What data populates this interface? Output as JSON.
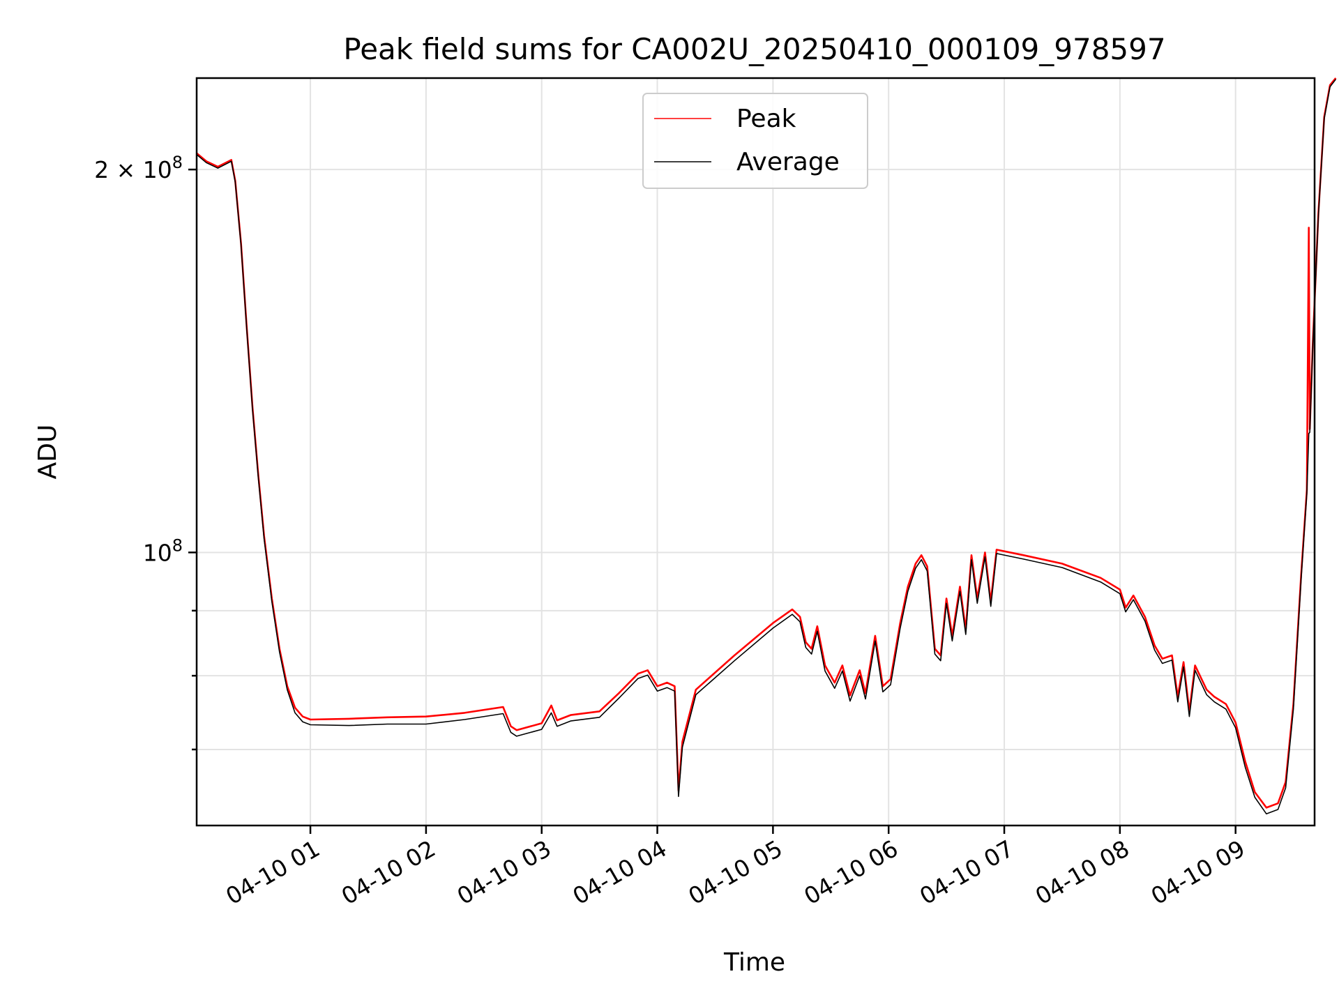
{
  "chart_data": {
    "type": "line",
    "title": "Peak field sums for CA002U_20250410_000109_978597",
    "xlabel": "Time",
    "ylabel": "ADU",
    "yscale": "log",
    "grid": true,
    "legend_position": "top-center",
    "xlim": [
      "04-10 00:01",
      "04-10 09:41"
    ],
    "ylim": [
      61000000,
      236000000
    ],
    "x_ticks": [
      "04-10 01",
      "04-10 02",
      "04-10 03",
      "04-10 04",
      "04-10 05",
      "04-10 06",
      "04-10 07",
      "04-10 08",
      "04-10 09"
    ],
    "y_ticks": [
      {
        "value": 100000000,
        "base": "10",
        "exp": "8",
        "mult": ""
      },
      {
        "value": 200000000,
        "base": "10",
        "exp": "8",
        "mult": "2 × "
      }
    ],
    "y_minor_ticks": [
      60000000,
      70000000,
      80000000,
      90000000
    ],
    "series": [
      {
        "name": "Peak",
        "color": "#ff0000",
        "points": [
          [
            "00:01",
            206000000
          ],
          [
            "00:06",
            203000000
          ],
          [
            "00:12",
            201000000
          ],
          [
            "00:19",
            203500000
          ],
          [
            "00:21",
            196000000
          ],
          [
            "00:24",
            175000000
          ],
          [
            "00:27",
            150000000
          ],
          [
            "00:30",
            130000000
          ],
          [
            "00:33",
            115000000
          ],
          [
            "00:36",
            103000000
          ],
          [
            "00:40",
            92000000
          ],
          [
            "00:44",
            84000000
          ],
          [
            "00:48",
            78500000
          ],
          [
            "00:52",
            75500000
          ],
          [
            "00:56",
            74300000
          ],
          [
            "01:00",
            73900000
          ],
          [
            "01:20",
            74000000
          ],
          [
            "01:40",
            74200000
          ],
          [
            "02:00",
            74300000
          ],
          [
            "02:20",
            74800000
          ],
          [
            "02:40",
            75600000
          ],
          [
            "02:44",
            73000000
          ],
          [
            "02:47",
            72500000
          ],
          [
            "03:00",
            73400000
          ],
          [
            "03:05",
            75800000
          ],
          [
            "03:08",
            73800000
          ],
          [
            "03:15",
            74500000
          ],
          [
            "03:30",
            75000000
          ],
          [
            "03:40",
            77500000
          ],
          [
            "03:50",
            80300000
          ],
          [
            "03:55",
            80800000
          ],
          [
            "04:00",
            78500000
          ],
          [
            "04:05",
            79000000
          ],
          [
            "04:09",
            78500000
          ],
          [
            "04:11",
            65000000
          ],
          [
            "04:13",
            71000000
          ],
          [
            "04:20",
            78000000
          ],
          [
            "04:40",
            83000000
          ],
          [
            "05:00",
            88000000
          ],
          [
            "05:10",
            90200000
          ],
          [
            "05:14",
            89000000
          ],
          [
            "05:17",
            85000000
          ],
          [
            "05:20",
            84000000
          ],
          [
            "05:23",
            87500000
          ],
          [
            "05:27",
            81500000
          ],
          [
            "05:32",
            79000000
          ],
          [
            "05:36",
            81500000
          ],
          [
            "05:40",
            77200000
          ],
          [
            "05:45",
            80800000
          ],
          [
            "05:48",
            77500000
          ],
          [
            "05:53",
            86000000
          ],
          [
            "05:57",
            78500000
          ],
          [
            "06:01",
            79500000
          ],
          [
            "06:06",
            88000000
          ],
          [
            "06:10",
            94000000
          ],
          [
            "06:14",
            98000000
          ],
          [
            "06:17",
            99500000
          ],
          [
            "06:20",
            97500000
          ],
          [
            "06:24",
            84000000
          ],
          [
            "06:27",
            83000000
          ],
          [
            "06:30",
            92000000
          ],
          [
            "06:33",
            86000000
          ],
          [
            "06:37",
            94000000
          ],
          [
            "06:40",
            87000000
          ],
          [
            "06:43",
            99500000
          ],
          [
            "06:46",
            92000000
          ],
          [
            "06:50",
            100000000
          ],
          [
            "06:53",
            91500000
          ],
          [
            "06:56",
            100500000
          ],
          [
            "07:10",
            99500000
          ],
          [
            "07:30",
            98000000
          ],
          [
            "07:50",
            95500000
          ],
          [
            "08:00",
            93500000
          ],
          [
            "08:03",
            90500000
          ],
          [
            "08:07",
            92500000
          ],
          [
            "08:13",
            89000000
          ],
          [
            "08:18",
            84500000
          ],
          [
            "08:22",
            82500000
          ],
          [
            "08:27",
            83000000
          ],
          [
            "08:30",
            77000000
          ],
          [
            "08:33",
            82000000
          ],
          [
            "08:36",
            75000000
          ],
          [
            "08:39",
            81500000
          ],
          [
            "08:45",
            78000000
          ],
          [
            "08:49",
            77000000
          ],
          [
            "08:55",
            76000000
          ],
          [
            "09:00",
            73500000
          ],
          [
            "09:05",
            68500000
          ],
          [
            "09:10",
            64800000
          ],
          [
            "09:16",
            63000000
          ],
          [
            "09:22",
            63500000
          ],
          [
            "09:26",
            66000000
          ],
          [
            "09:30",
            76000000
          ],
          [
            "09:34",
            96000000
          ],
          [
            "09:37",
            112000000
          ],
          [
            "09:38",
            180000000
          ],
          [
            "09:385",
            125000000
          ],
          [
            "09:40",
            145000000
          ],
          [
            "09:43",
            185000000
          ],
          [
            "09:46",
            220000000
          ],
          [
            "09:49",
            233000000
          ],
          [
            "09:52",
            236000000
          ]
        ]
      },
      {
        "name": "Average",
        "color": "#000000",
        "points": [
          [
            "00:01",
            205500000
          ],
          [
            "00:06",
            202500000
          ],
          [
            "00:12",
            200500000
          ],
          [
            "00:19",
            203000000
          ],
          [
            "00:21",
            195500000
          ],
          [
            "00:24",
            174500000
          ],
          [
            "00:27",
            149500000
          ],
          [
            "00:30",
            129500000
          ],
          [
            "00:33",
            114500000
          ],
          [
            "00:36",
            102500000
          ],
          [
            "00:40",
            91500000
          ],
          [
            "00:44",
            83500000
          ],
          [
            "00:48",
            78000000
          ],
          [
            "00:52",
            74800000
          ],
          [
            "00:56",
            73600000
          ],
          [
            "01:00",
            73200000
          ],
          [
            "01:20",
            73100000
          ],
          [
            "01:40",
            73300000
          ],
          [
            "02:00",
            73300000
          ],
          [
            "02:20",
            73900000
          ],
          [
            "02:40",
            74700000
          ],
          [
            "02:44",
            72200000
          ],
          [
            "02:47",
            71700000
          ],
          [
            "03:00",
            72600000
          ],
          [
            "03:05",
            74800000
          ],
          [
            "03:08",
            73000000
          ],
          [
            "03:15",
            73700000
          ],
          [
            "03:30",
            74200000
          ],
          [
            "03:40",
            76800000
          ],
          [
            "03:50",
            79600000
          ],
          [
            "03:55",
            80100000
          ],
          [
            "04:00",
            77800000
          ],
          [
            "04:05",
            78300000
          ],
          [
            "04:09",
            77800000
          ],
          [
            "04:11",
            64300000
          ],
          [
            "04:13",
            70300000
          ],
          [
            "04:20",
            77300000
          ],
          [
            "04:40",
            82200000
          ],
          [
            "05:00",
            87200000
          ],
          [
            "05:10",
            89400000
          ],
          [
            "05:14",
            88200000
          ],
          [
            "05:17",
            84200000
          ],
          [
            "05:20",
            83200000
          ],
          [
            "05:23",
            86700000
          ],
          [
            "05:27",
            80700000
          ],
          [
            "05:32",
            78200000
          ],
          [
            "05:36",
            80700000
          ],
          [
            "05:40",
            76400000
          ],
          [
            "05:45",
            80000000
          ],
          [
            "05:48",
            76700000
          ],
          [
            "05:53",
            85200000
          ],
          [
            "05:57",
            77700000
          ],
          [
            "06:01",
            78700000
          ],
          [
            "06:06",
            87200000
          ],
          [
            "06:10",
            93200000
          ],
          [
            "06:14",
            97200000
          ],
          [
            "06:17",
            98700000
          ],
          [
            "06:20",
            96700000
          ],
          [
            "06:24",
            83200000
          ],
          [
            "06:27",
            82200000
          ],
          [
            "06:30",
            91200000
          ],
          [
            "06:33",
            85200000
          ],
          [
            "06:37",
            93200000
          ],
          [
            "06:40",
            86200000
          ],
          [
            "06:43",
            98700000
          ],
          [
            "06:46",
            91200000
          ],
          [
            "06:50",
            99200000
          ],
          [
            "06:53",
            90700000
          ],
          [
            "06:56",
            99800000
          ],
          [
            "07:10",
            98800000
          ],
          [
            "07:30",
            97300000
          ],
          [
            "07:50",
            94800000
          ],
          [
            "08:00",
            92800000
          ],
          [
            "08:03",
            89800000
          ],
          [
            "08:07",
            91800000
          ],
          [
            "08:13",
            88300000
          ],
          [
            "08:18",
            83800000
          ],
          [
            "08:22",
            81800000
          ],
          [
            "08:27",
            82300000
          ],
          [
            "08:30",
            76300000
          ],
          [
            "08:33",
            81300000
          ],
          [
            "08:36",
            74300000
          ],
          [
            "08:39",
            80800000
          ],
          [
            "08:45",
            77300000
          ],
          [
            "08:49",
            76300000
          ],
          [
            "08:55",
            75300000
          ],
          [
            "09:00",
            72800000
          ],
          [
            "09:05",
            67800000
          ],
          [
            "09:10",
            64200000
          ],
          [
            "09:16",
            62300000
          ],
          [
            "09:22",
            62800000
          ],
          [
            "09:26",
            65300000
          ],
          [
            "09:30",
            75300000
          ],
          [
            "09:34",
            95300000
          ],
          [
            "09:37",
            111300000
          ],
          [
            "09:38",
            124000000
          ],
          [
            "09:385",
            124300000
          ],
          [
            "09:40",
            144300000
          ],
          [
            "09:43",
            184300000
          ],
          [
            "09:46",
            219300000
          ],
          [
            "09:49",
            232300000
          ],
          [
            "09:52",
            235500000
          ]
        ]
      }
    ]
  }
}
